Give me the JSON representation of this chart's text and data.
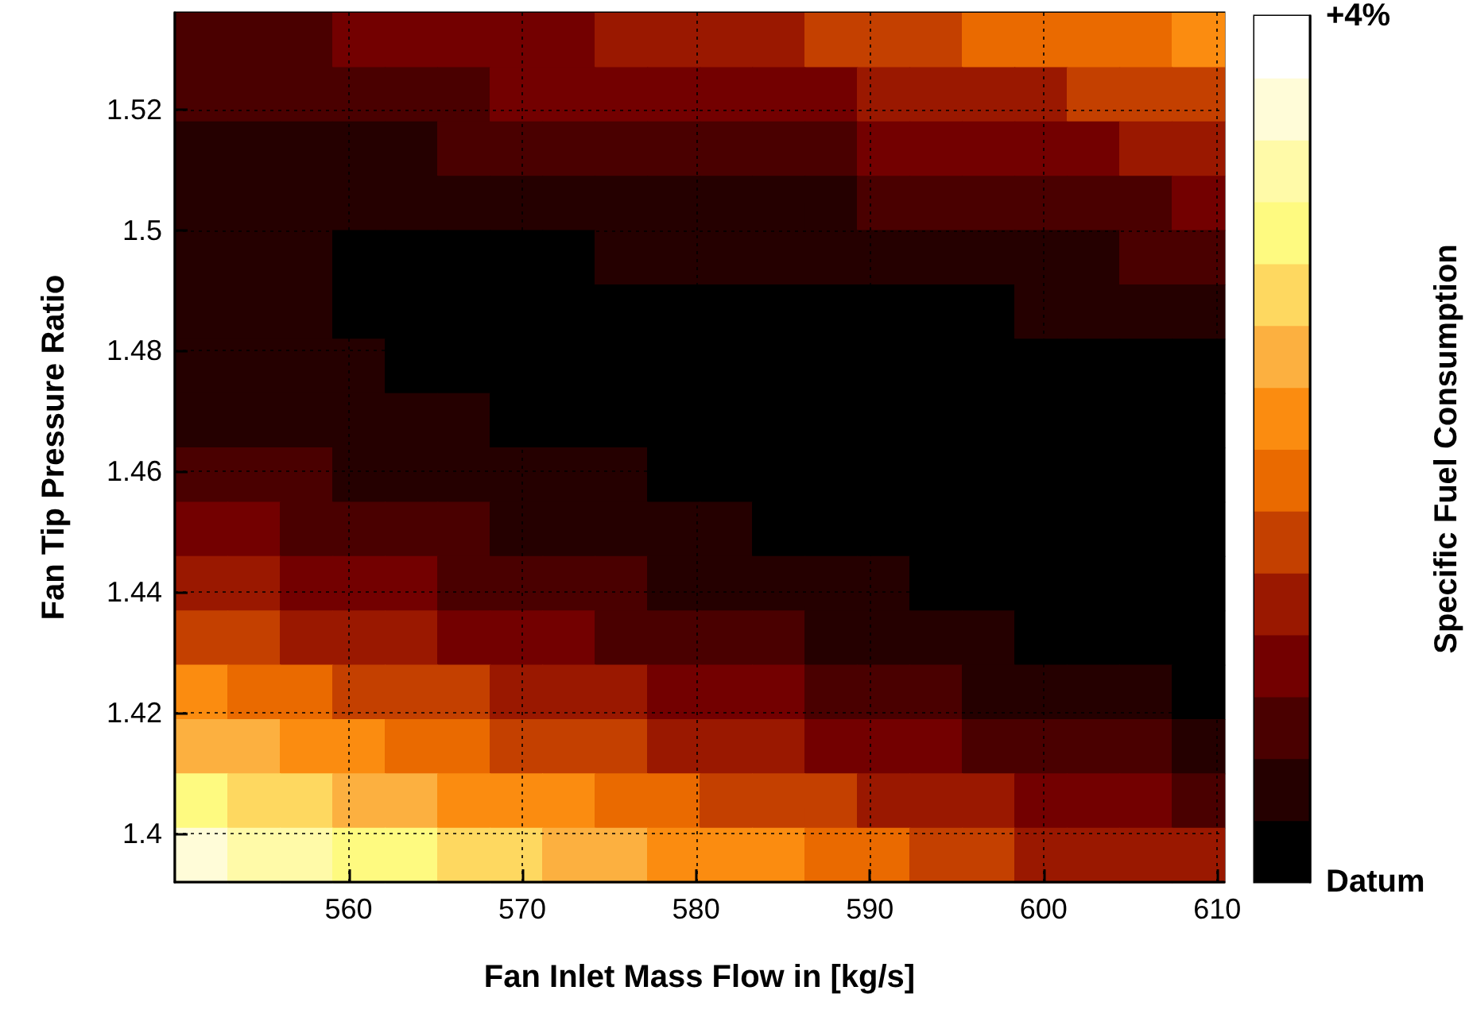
{
  "chart_data": {
    "type": "heatmap",
    "xlabel": "Fan Inlet Mass Flow in [kg/s]",
    "ylabel": "Fan Tip Pressure Ratio",
    "clabel": "Specific Fuel Consumption",
    "xlim": [
      550,
      610.4
    ],
    "xticks": [
      560,
      570,
      580,
      590,
      600,
      610
    ],
    "ylim": [
      1.392,
      1.536
    ],
    "yticks": [
      1.4,
      1.42,
      1.44,
      1.46,
      1.48,
      1.5,
      1.52
    ],
    "grid": true,
    "clim": [
      0,
      4
    ],
    "cticks": [
      {
        "value": 0,
        "label": "Datum"
      },
      {
        "value": 4,
        "label": "+4%"
      }
    ],
    "colors": [
      "#000000",
      "#250000",
      "#4a0000",
      "#730000",
      "#9a1800",
      "#c44000",
      "#ea6a00",
      "#fb8c10",
      "#fcb040",
      "#fed860",
      "#fefa80",
      "#fffaa8",
      "#fffcd8",
      "#ffffff"
    ],
    "x": [
      551.51,
      554.53,
      557.55,
      560.57,
      563.59,
      566.61,
      569.63,
      572.65,
      575.67,
      578.69,
      581.71,
      584.73,
      587.75,
      590.77,
      593.79,
      596.81,
      599.83,
      602.85,
      605.87,
      608.89
    ],
    "y": [
      1.5315,
      1.5225,
      1.5135,
      1.5045,
      1.4955,
      1.4865,
      1.4775,
      1.4685,
      1.4595,
      1.4505,
      1.4415,
      1.4325,
      1.4235,
      1.4145,
      1.4055,
      1.3965
    ],
    "cells": [
      [
        0.7,
        0.7,
        0.7,
        1.0,
        1.0,
        1.0,
        1.0,
        1.0,
        1.3,
        1.3,
        1.3,
        1.3,
        1.6,
        1.6,
        1.6,
        1.9,
        1.9,
        1.9,
        1.9,
        2.1
      ],
      [
        0.7,
        0.7,
        0.7,
        0.7,
        0.7,
        0.7,
        1.0,
        1.0,
        1.0,
        1.0,
        1.0,
        1.0,
        1.0,
        1.3,
        1.3,
        1.3,
        1.3,
        1.6,
        1.6,
        1.6
      ],
      [
        0.4,
        0.4,
        0.4,
        0.4,
        0.4,
        0.7,
        0.7,
        0.7,
        0.7,
        0.7,
        0.7,
        0.7,
        0.7,
        1.0,
        1.0,
        1.0,
        1.0,
        1.0,
        1.3,
        1.3
      ],
      [
        0.4,
        0.4,
        0.4,
        0.4,
        0.4,
        0.4,
        0.4,
        0.4,
        0.4,
        0.4,
        0.4,
        0.4,
        0.4,
        0.7,
        0.7,
        0.7,
        0.7,
        0.7,
        0.7,
        1.0
      ],
      [
        0.4,
        0.4,
        0.4,
        0.1,
        0.1,
        0.1,
        0.1,
        0.1,
        0.4,
        0.4,
        0.4,
        0.4,
        0.4,
        0.4,
        0.4,
        0.4,
        0.4,
        0.4,
        0.7,
        0.7
      ],
      [
        0.4,
        0.4,
        0.4,
        0.1,
        0.1,
        0.1,
        0.1,
        0.1,
        0.1,
        0.1,
        0.1,
        0.1,
        0.1,
        0.1,
        0.1,
        0.1,
        0.4,
        0.4,
        0.4,
        0.4
      ],
      [
        0.4,
        0.4,
        0.4,
        0.4,
        0.1,
        0.1,
        0.1,
        0.1,
        0.1,
        0.1,
        0.1,
        0.1,
        0.1,
        0.1,
        0.1,
        0.1,
        0.1,
        0.1,
        0.1,
        0.1
      ],
      [
        0.4,
        0.4,
        0.4,
        0.4,
        0.4,
        0.4,
        0.1,
        0.1,
        0.1,
        0.1,
        0.1,
        0.1,
        0.1,
        0.1,
        0.1,
        0.1,
        0.1,
        0.1,
        0.1,
        0.1
      ],
      [
        0.7,
        0.7,
        0.7,
        0.4,
        0.4,
        0.4,
        0.4,
        0.4,
        0.4,
        0.1,
        0.1,
        0.1,
        0.1,
        0.1,
        0.1,
        0.1,
        0.1,
        0.1,
        0.1,
        0.1
      ],
      [
        1.0,
        1.0,
        0.7,
        0.7,
        0.7,
        0.7,
        0.4,
        0.4,
        0.4,
        0.4,
        0.4,
        0.1,
        0.1,
        0.1,
        0.1,
        0.1,
        0.1,
        0.1,
        0.1,
        0.1
      ],
      [
        1.3,
        1.3,
        1.0,
        1.0,
        1.0,
        0.7,
        0.7,
        0.7,
        0.7,
        0.4,
        0.4,
        0.4,
        0.4,
        0.4,
        0.1,
        0.1,
        0.1,
        0.1,
        0.1,
        0.1
      ],
      [
        1.6,
        1.6,
        1.3,
        1.3,
        1.3,
        1.0,
        1.0,
        1.0,
        0.7,
        0.7,
        0.7,
        0.7,
        0.4,
        0.4,
        0.4,
        0.4,
        0.1,
        0.1,
        0.1,
        0.1
      ],
      [
        2.1,
        1.9,
        1.9,
        1.6,
        1.6,
        1.6,
        1.3,
        1.3,
        1.3,
        1.0,
        1.0,
        1.0,
        0.7,
        0.7,
        0.7,
        0.4,
        0.4,
        0.4,
        0.4,
        0.1
      ],
      [
        2.4,
        2.4,
        2.1,
        2.1,
        1.9,
        1.9,
        1.6,
        1.6,
        1.6,
        1.3,
        1.3,
        1.3,
        1.0,
        1.0,
        1.0,
        0.7,
        0.7,
        0.7,
        0.7,
        0.4
      ],
      [
        3.0,
        2.7,
        2.7,
        2.4,
        2.4,
        2.1,
        2.1,
        2.1,
        1.9,
        1.9,
        1.6,
        1.6,
        1.6,
        1.3,
        1.3,
        1.3,
        1.0,
        1.0,
        1.0,
        0.7
      ],
      [
        3.6,
        3.3,
        3.3,
        3.0,
        3.0,
        2.7,
        2.7,
        2.4,
        2.4,
        2.1,
        2.1,
        2.1,
        1.9,
        1.9,
        1.6,
        1.6,
        1.3,
        1.3,
        1.3,
        1.3
      ]
    ]
  }
}
